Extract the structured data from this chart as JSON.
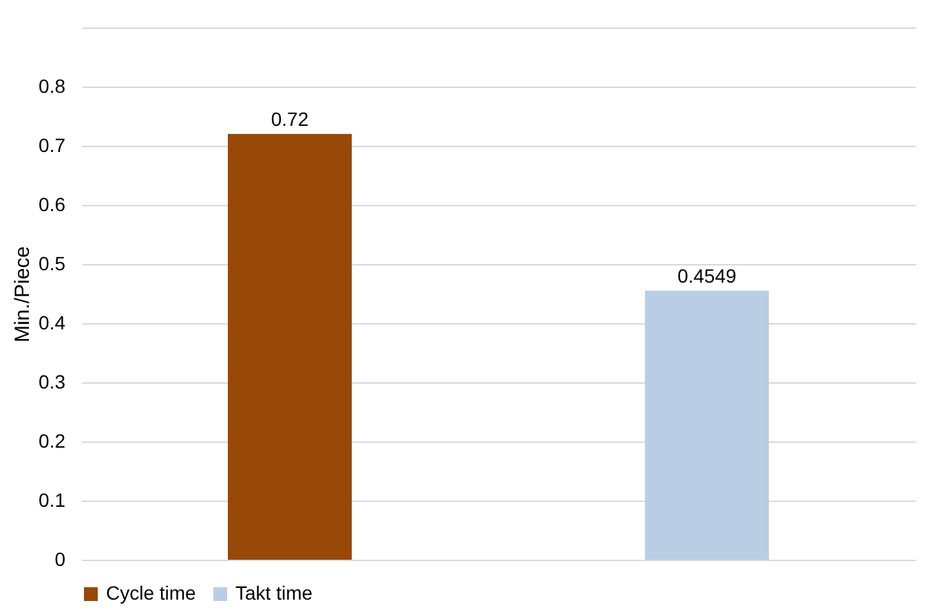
{
  "chart_data": {
    "type": "bar",
    "ylabel": "Min./Piece",
    "categories": [
      null,
      null
    ],
    "series": [
      {
        "name": "Cycle time",
        "color": "#984807",
        "values": [
          0.72,
          null
        ]
      },
      {
        "name": "Takt time",
        "color": "#b9cde5",
        "values": [
          null,
          0.4549
        ]
      }
    ],
    "ylim": [
      0,
      0.9
    ],
    "yticks": [
      0,
      0.1,
      0.2,
      0.3,
      0.4,
      0.5,
      0.6,
      0.7,
      0.8,
      {
        "value": 0.9,
        "label": null
      }
    ],
    "data_labels": true,
    "grid": "y",
    "legend": "bottom",
    "tick_labels": "y"
  }
}
